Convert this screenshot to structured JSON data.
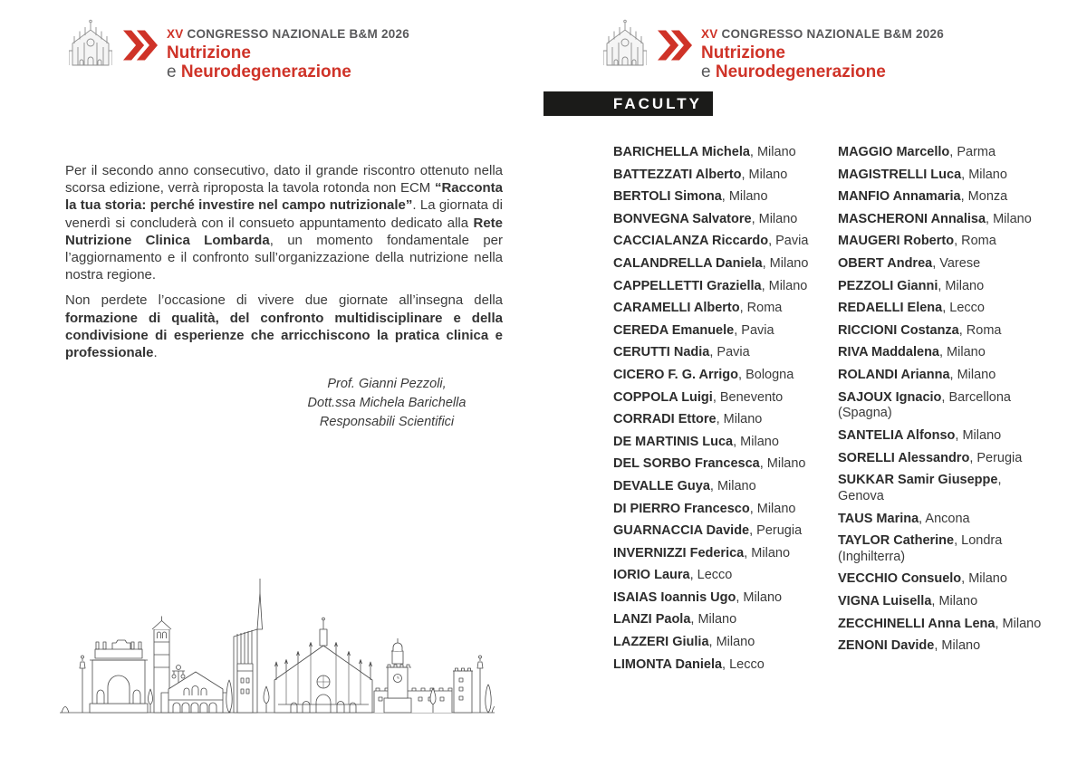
{
  "colors": {
    "accent_red": "#cf3328",
    "header_gray": "#58585a",
    "body_text": "#3b3b3b",
    "banner_bg": "#1b1b19",
    "banner_text": "#ffffff"
  },
  "icons": {
    "logo": "duomo-cathedral-line-art",
    "chevron": "double-chevron-right",
    "skyline": "milan-skyline-line-art"
  },
  "header": {
    "congress_xv": "XV",
    "congress_rest": " CONGRESSO NAZIONALE B&M 2026",
    "title_line1": "Nutrizione",
    "title_line2_e": "e ",
    "title_line2_rest": "Neurodegenerazione"
  },
  "right_page": {
    "banner_label": "FACULTY",
    "faculty_columns": [
      {
        "entries": [
          {
            "name": "BARICHELLA Michela",
            "city": [
              "Milano"
            ]
          },
          {
            "name": "BATTEZZATI Alberto",
            "city": [
              "Milano"
            ]
          },
          {
            "name": "BERTOLI Simona",
            "city": [
              "Milano"
            ]
          },
          {
            "name": "BONVEGNA Salvatore",
            "city": [
              "Milano"
            ]
          },
          {
            "name": "CACCIALANZA Riccardo",
            "city": [
              "Pavia"
            ]
          },
          {
            "name": "CALANDRELLA Daniela",
            "city": [
              "Milano"
            ]
          },
          {
            "name": "CAPPELLETTI Graziella",
            "city": [
              "Milano"
            ]
          },
          {
            "name": "CARAMELLI Alberto",
            "city": [
              "Roma"
            ]
          },
          {
            "name": "CEREDA Emanuele",
            "city": [
              "Pavia"
            ]
          },
          {
            "name": "CERUTTI Nadia",
            "city": [
              "Pavia"
            ]
          },
          {
            "name": "CICERO F. G. Arrigo",
            "city": [
              "Bologna"
            ]
          },
          {
            "name": "COPPOLA Luigi",
            "city": [
              "Benevento"
            ]
          },
          {
            "name": "CORRADI Ettore",
            "city": [
              "Milano"
            ]
          },
          {
            "name": "DE MARTINIS Luca",
            "city": [
              "Milano"
            ]
          },
          {
            "name": "DEL SORBO Francesca",
            "city": [
              "Milano"
            ]
          },
          {
            "name": "DEVALLE Guya",
            "city": [
              "Milano"
            ]
          },
          {
            "name": "DI PIERRO Francesco",
            "city": [
              "Milano"
            ]
          },
          {
            "name": "GUARNACCIA Davide",
            "city": [
              "Perugia"
            ]
          },
          {
            "name": "INVERNIZZI Federica",
            "city": [
              "Milano"
            ]
          },
          {
            "name": "IORIO Laura",
            "city": [
              "Lecco"
            ]
          },
          {
            "name": "ISAIAS Ioannis Ugo",
            "city": [
              "Milano"
            ]
          },
          {
            "name": "LANZI Paola",
            "city": [
              "Milano"
            ]
          },
          {
            "name": "LAZZERI Giulia",
            "city": [
              "Milano"
            ]
          },
          {
            "name": "LIMONTA Daniela",
            "city": [
              "Lecco"
            ]
          }
        ]
      },
      {
        "entries": [
          {
            "name": "MAGGIO Marcello",
            "city": [
              "Parma"
            ]
          },
          {
            "name": "MAGISTRELLI Luca",
            "city": [
              "Milano"
            ]
          },
          {
            "name": "MANFIO Annamaria",
            "city": [
              "Monza"
            ]
          },
          {
            "name": "MASCHERONI Annalisa",
            "city": [
              "Milano"
            ]
          },
          {
            "name": "MAUGERI Roberto",
            "city": [
              "Roma"
            ]
          },
          {
            "name": "OBERT Andrea",
            "city": [
              "Varese"
            ]
          },
          {
            "name": "PEZZOLI Gianni",
            "city": [
              "Milano"
            ]
          },
          {
            "name": "REDAELLI Elena",
            "city": [
              "Lecco"
            ]
          },
          {
            "name": "RICCIONI Costanza",
            "city": [
              "Roma"
            ]
          },
          {
            "name": "RIVA Maddalena",
            "city": [
              "Milano"
            ]
          },
          {
            "name": "ROLANDI Arianna",
            "city": [
              "Milano"
            ]
          },
          {
            "name": "SAJOUX Ignacio",
            "city": [
              "Barcellona",
              "(Spagna)"
            ]
          },
          {
            "name": "SANTELIA Alfonso",
            "city": [
              "Milano"
            ]
          },
          {
            "name": "SORELLI Alessandro",
            "city": [
              "Perugia"
            ]
          },
          {
            "name": "SUKKAR Samir Giuseppe",
            "city": [
              "",
              "Genova"
            ]
          },
          {
            "name": "TAUS Marina",
            "city": [
              "Ancona"
            ]
          },
          {
            "name": "TAYLOR Catherine",
            "city": [
              "Londra",
              "(Inghilterra)"
            ]
          },
          {
            "name": "VECCHIO Consuelo",
            "city": [
              "Milano"
            ]
          },
          {
            "name": "VIGNA Luisella",
            "city": [
              "Milano"
            ]
          },
          {
            "name": "ZECCHINELLI Anna Lena",
            "city": [
              "Milano"
            ]
          },
          {
            "name": "ZENONI Davide",
            "city": [
              "Milano"
            ]
          }
        ]
      }
    ]
  },
  "left_page": {
    "paragraphs": [
      {
        "segments": [
          {
            "text": "Per il secondo anno consecutivo, dato il grande riscontro ottenuto nella scorsa edizione, verrà riproposta la tavola rotonda non ECM ",
            "bold": false
          },
          {
            "text": "“Racconta la tua storia: perché investire nel campo nutrizionale”",
            "bold": true
          },
          {
            "text": ". La giornata di venerdì si concluderà con il consueto appuntamento dedicato alla ",
            "bold": false
          },
          {
            "text": "Rete Nutrizione Clinica Lombarda",
            "bold": true
          },
          {
            "text": ", un momento fondamentale per l’aggiornamento e il confronto sull’organizzazione della nutrizione nella nostra regione.",
            "bold": false
          }
        ]
      },
      {
        "segments": [
          {
            "text": "Non perdete l’occasione di vivere due giornate all’insegna della ",
            "bold": false
          },
          {
            "text": "formazione di qualità, del confronto multidisciplinare e della condivisione di esperienze che arricchiscono la pratica clinica e professionale",
            "bold": true
          },
          {
            "text": ".",
            "bold": false
          }
        ]
      }
    ],
    "signature": [
      "Prof. Gianni Pezzoli,",
      "Dott.ssa Michela Barichella",
      "Responsabili Scientifici"
    ]
  }
}
